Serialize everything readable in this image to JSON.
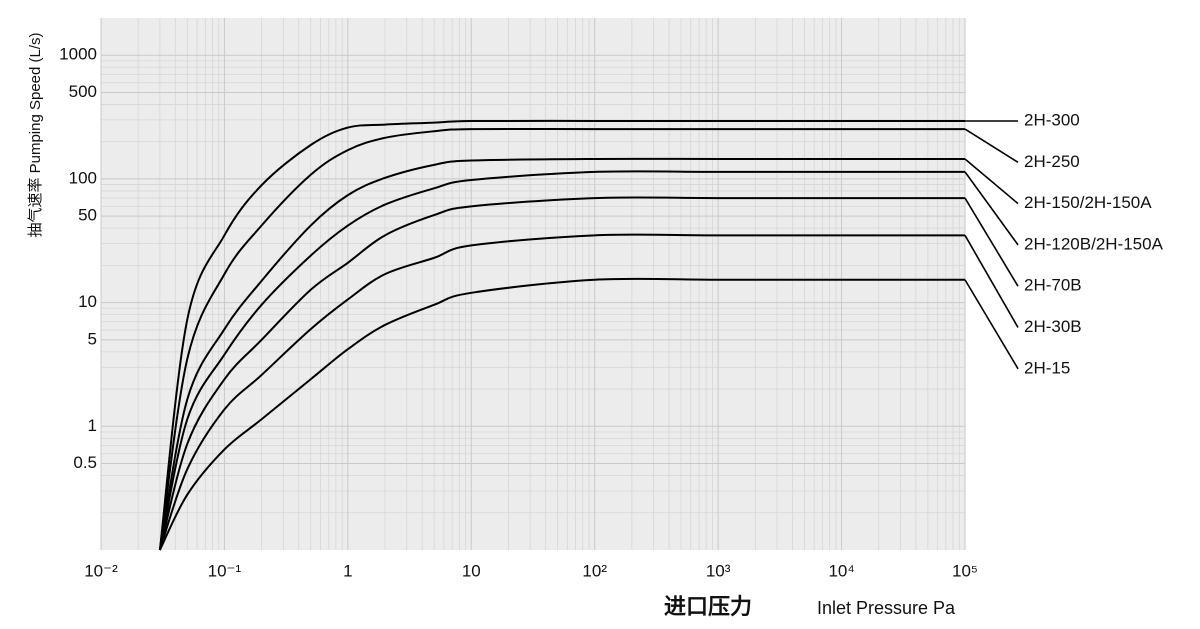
{
  "chart_data": {
    "type": "line",
    "log_x": true,
    "log_y": true,
    "grid": true,
    "minor_grid": true,
    "ylabel": "抽气速率 Pumping Speed (L/s)",
    "xlabel_cn": "进口压力",
    "xlabel": "Inlet Pressure Pa",
    "xlim": [
      0.01,
      100000
    ],
    "ylim": [
      0.1,
      2000
    ],
    "xticks": [
      {
        "value": 0.01,
        "label": "10⁻²"
      },
      {
        "value": 0.1,
        "label": "10⁻¹"
      },
      1,
      10,
      {
        "value": 100,
        "label": "10²"
      },
      {
        "value": 1000,
        "label": "10³"
      },
      {
        "value": 10000,
        "label": "10⁴"
      },
      {
        "value": 100000,
        "label": "10⁵"
      }
    ],
    "yticks": [
      1000,
      500,
      100,
      50,
      10,
      5,
      1,
      0.5
    ],
    "x": [
      0.03,
      0.05,
      0.1,
      0.2,
      0.5,
      1,
      2,
      5,
      10,
      100,
      1000,
      10000,
      100000
    ],
    "series": [
      {
        "name": "2H-300",
        "color": "#000000",
        "values": [
          0.1,
          7.3,
          35,
          89,
          188,
          260,
          275,
          285,
          294,
          294,
          294,
          294,
          294
        ]
      },
      {
        "name": "2H-250",
        "color": "#000000",
        "values": [
          0.1,
          3.5,
          17,
          42,
          108,
          171,
          215,
          243,
          253,
          253,
          253,
          253,
          253
        ]
      },
      {
        "name": "2H-150/2H-150A",
        "color": "#000000",
        "values": [
          0.1,
          1.65,
          6.1,
          15,
          42,
          74,
          102,
          130,
          141,
          145,
          145,
          145,
          145
        ]
      },
      {
        "name": "2H-120B/2H-150A",
        "color": "#000000",
        "values": [
          0.1,
          1.14,
          3.8,
          9.6,
          24,
          42,
          62,
          84,
          98,
          114,
          114,
          114,
          114
        ]
      },
      {
        "name": "2H-70B",
        "color": "#000000",
        "values": [
          0.1,
          0.72,
          2.4,
          5,
          12.7,
          21,
          35,
          51,
          60,
          70,
          70,
          70,
          70
        ]
      },
      {
        "name": "2H-30B",
        "color": "#000000",
        "values": [
          0.1,
          0.45,
          1.37,
          2.6,
          6.1,
          10.6,
          17,
          23,
          29,
          35,
          35,
          35,
          35
        ]
      },
      {
        "name": "2H-15",
        "color": "#000000",
        "values": [
          0.1,
          0.28,
          0.65,
          1.14,
          2.4,
          4.2,
          6.6,
          9.6,
          12,
          15.3,
          15.3,
          15.3,
          15.3
        ]
      }
    ]
  }
}
